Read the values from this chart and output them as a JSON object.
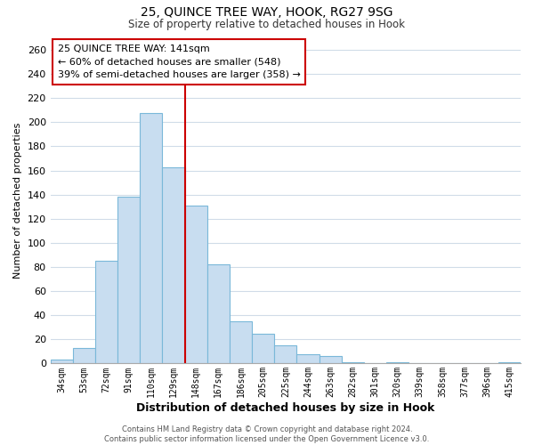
{
  "title_main": "25, QUINCE TREE WAY, HOOK, RG27 9SG",
  "title_sub": "Size of property relative to detached houses in Hook",
  "xlabel": "Distribution of detached houses by size in Hook",
  "ylabel": "Number of detached properties",
  "bar_labels": [
    "34sqm",
    "53sqm",
    "72sqm",
    "91sqm",
    "110sqm",
    "129sqm",
    "148sqm",
    "167sqm",
    "186sqm",
    "205sqm",
    "225sqm",
    "244sqm",
    "263sqm",
    "282sqm",
    "301sqm",
    "320sqm",
    "339sqm",
    "358sqm",
    "377sqm",
    "396sqm",
    "415sqm"
  ],
  "bar_heights": [
    3,
    13,
    85,
    138,
    208,
    163,
    131,
    82,
    35,
    25,
    15,
    8,
    6,
    1,
    0,
    1,
    0,
    0,
    0,
    0,
    1
  ],
  "bar_color": "#c8ddf0",
  "bar_edge_color": "#7ab8d9",
  "vline_x": 6.0,
  "vline_color": "#cc0000",
  "annotation_text": "25 QUINCE TREE WAY: 141sqm\n← 60% of detached houses are smaller (548)\n39% of semi-detached houses are larger (358) →",
  "annotation_box_color": "#ffffff",
  "annotation_box_edge": "#cc0000",
  "ylim": [
    0,
    270
  ],
  "yticks": [
    0,
    20,
    40,
    60,
    80,
    100,
    120,
    140,
    160,
    180,
    200,
    220,
    240,
    260
  ],
  "footer_text": "Contains HM Land Registry data © Crown copyright and database right 2024.\nContains public sector information licensed under the Open Government Licence v3.0.",
  "background_color": "#ffffff",
  "grid_color": "#d0dce8",
  "title_fontsize": 10,
  "subtitle_fontsize": 8.5,
  "xlabel_fontsize": 9,
  "ylabel_fontsize": 8,
  "tick_fontsize": 7,
  "footer_fontsize": 6,
  "annot_fontsize": 8
}
